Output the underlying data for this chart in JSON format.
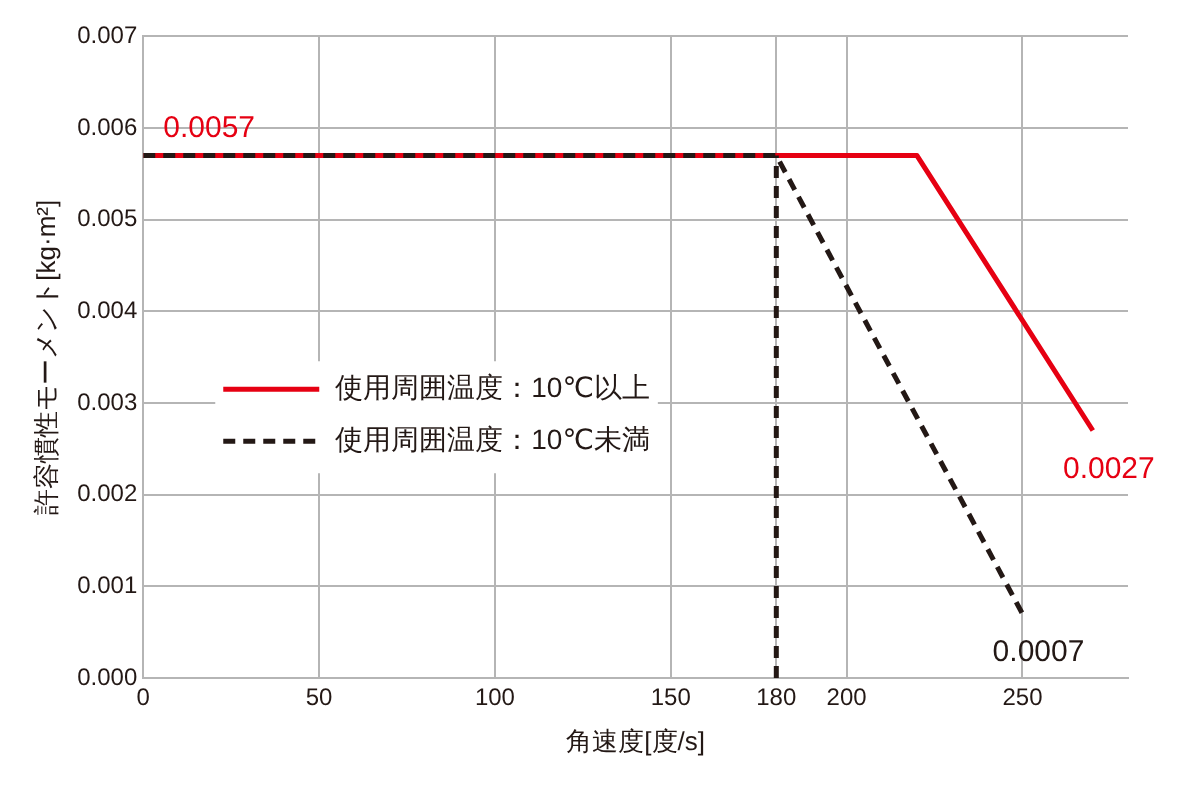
{
  "chart_data": {
    "type": "line",
    "xlabel": "角速度[度/s]",
    "ylabel": "許容慣性モーメント[kg·m²]",
    "xlim": [
      0,
      280
    ],
    "xticks": [
      0,
      50,
      100,
      150,
      180,
      200,
      250
    ],
    "ylim": [
      0,
      0.007
    ],
    "yticks": [
      {
        "value": 0,
        "label": "0.000"
      },
      0.001,
      0.002,
      0.003,
      0.004,
      0.005,
      0.006,
      0.007
    ],
    "grid": true,
    "legend": "center left",
    "marker": "none",
    "series": [
      {
        "name": "使用周囲温度：10℃以上",
        "color": "#e60012",
        "x": [
          0,
          220,
          270
        ],
        "values": [
          0.0057,
          0.0057,
          0.0027
        ],
        "value_labels": [
          "0.0057",
          null,
          "0.0027"
        ],
        "line_style": "solid"
      },
      {
        "name": "使用周囲温度：10℃未満",
        "color": "#231815",
        "x": [
          0,
          180,
          250
        ],
        "values": [
          0.0057,
          0.0057,
          0.0007
        ],
        "value_labels": [
          null,
          null,
          "0.0007"
        ],
        "line_style": "dashed"
      },
      {
        "color": "#231815",
        "x": [
          180,
          180
        ],
        "values": [
          0,
          0.0057
        ],
        "line_style": "dashed"
      }
    ]
  }
}
